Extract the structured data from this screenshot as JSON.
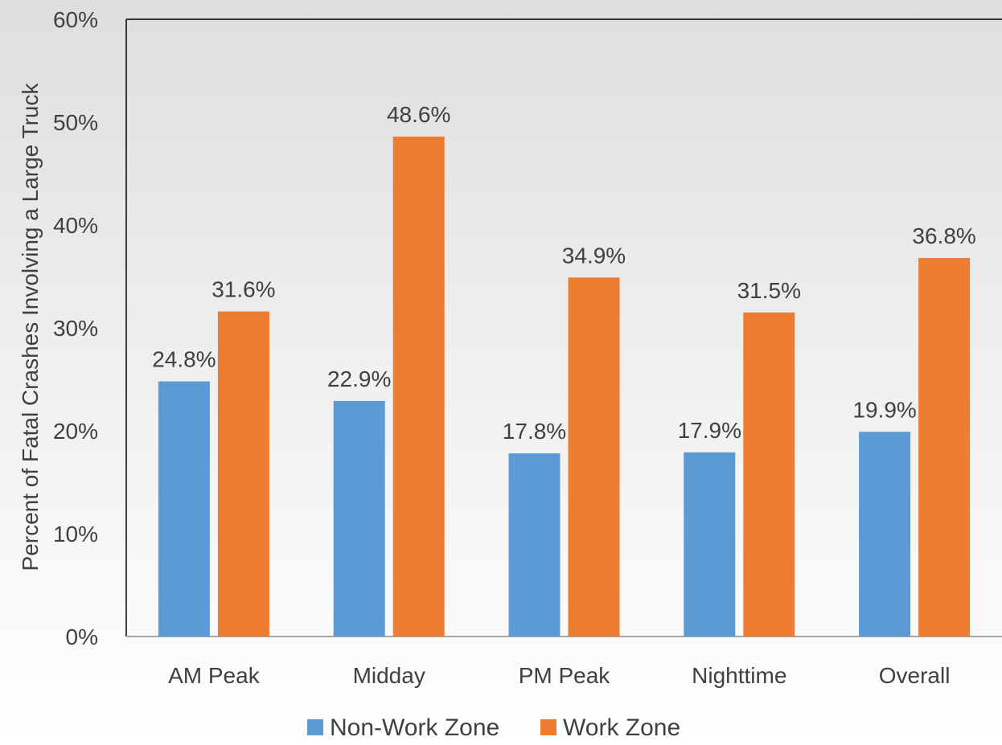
{
  "chart_data": {
    "type": "bar",
    "title": "",
    "xlabel": "",
    "ylabel": "Percent of Fatal Crashes Involving a Large Truck",
    "categories": [
      "AM Peak",
      "Midday",
      "PM Peak",
      "Nighttime",
      "Overall"
    ],
    "series": [
      {
        "name": "Non-Work Zone",
        "values": [
          24.8,
          22.9,
          17.8,
          17.9,
          19.9
        ],
        "labels": [
          "24.8%",
          "22.9%",
          "17.8%",
          "17.9%",
          "19.9%"
        ],
        "color": "#5b9bd5"
      },
      {
        "name": "Work Zone",
        "values": [
          31.6,
          48.6,
          34.9,
          31.5,
          36.8
        ],
        "labels": [
          "31.6%",
          "48.6%",
          "34.9%",
          "31.5%",
          "36.8%"
        ],
        "color": "#ed7d31"
      }
    ],
    "ylim": [
      0,
      60
    ],
    "y_ticks": [
      0,
      10,
      20,
      30,
      40,
      50,
      60
    ],
    "y_tick_labels": [
      "0%",
      "10%",
      "20%",
      "30%",
      "40%",
      "50%",
      "60%"
    ],
    "grid": false,
    "legend_position": "bottom"
  }
}
